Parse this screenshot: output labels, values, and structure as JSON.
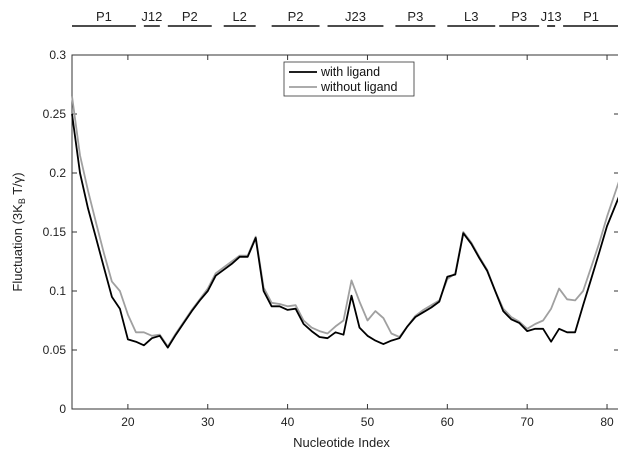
{
  "chart_data": {
    "type": "line",
    "xlabel": "Nucleotide Index",
    "ylabel": "Fluctuation (3K",
    "ylabel_sub": "B",
    "ylabel_tail": " T/γ)",
    "xlim": [
      13,
      81.5
    ],
    "ylim": [
      0,
      0.3
    ],
    "xticks": [
      20,
      30,
      40,
      50,
      60,
      70,
      80
    ],
    "yticks": [
      0,
      0.05,
      0.1,
      0.15,
      0.2,
      0.25,
      0.3
    ],
    "ytick_labels": [
      "0",
      "0.05",
      "0.1",
      "0.15",
      "0.2",
      "0.25",
      "0.3"
    ],
    "legend_position": "top-center",
    "grid": false,
    "regions": [
      {
        "label": "P1",
        "x0": 13,
        "x1": 21
      },
      {
        "label": "J12",
        "x0": 22,
        "x1": 24
      },
      {
        "label": "P2",
        "x0": 25,
        "x1": 30.5
      },
      {
        "label": "L2",
        "x0": 32,
        "x1": 36
      },
      {
        "label": "P2",
        "x0": 38,
        "x1": 44
      },
      {
        "label": "J23",
        "x0": 45,
        "x1": 52
      },
      {
        "label": "P3",
        "x0": 53.5,
        "x1": 58.5
      },
      {
        "label": "L3",
        "x0": 60,
        "x1": 66
      },
      {
        "label": "P3",
        "x0": 66.5,
        "x1": 71.5
      },
      {
        "label": "J13",
        "x0": 72.5,
        "x1": 73.5
      },
      {
        "label": "P1",
        "x0": 74.5,
        "x1": 81.5
      }
    ],
    "series": [
      {
        "name": "with ligand",
        "color": "#000000",
        "x": [
          13,
          14,
          15,
          16,
          17,
          18,
          19,
          20,
          21,
          22,
          23,
          24,
          25,
          26,
          27,
          28,
          29,
          30,
          31,
          32,
          33,
          34,
          35,
          36,
          37,
          38,
          39,
          40,
          41,
          42,
          43,
          44,
          45,
          46,
          47,
          48,
          49,
          50,
          51,
          52,
          53,
          54,
          55,
          56,
          57,
          58,
          59,
          60,
          61,
          62,
          63,
          64,
          65,
          66,
          67,
          68,
          69,
          70,
          71,
          72,
          73,
          74,
          75,
          76,
          77,
          78,
          79,
          80,
          81.5
        ],
        "values": [
          0.25,
          0.2,
          0.17,
          0.145,
          0.12,
          0.095,
          0.085,
          0.059,
          0.057,
          0.054,
          0.06,
          0.062,
          0.052,
          0.063,
          0.073,
          0.083,
          0.092,
          0.1,
          0.113,
          0.118,
          0.123,
          0.129,
          0.129,
          0.145,
          0.1,
          0.087,
          0.087,
          0.084,
          0.085,
          0.072,
          0.066,
          0.061,
          0.06,
          0.065,
          0.063,
          0.096,
          0.069,
          0.062,
          0.058,
          0.055,
          0.058,
          0.06,
          0.07,
          0.078,
          0.082,
          0.086,
          0.091,
          0.112,
          0.114,
          0.149,
          0.14,
          0.128,
          0.117,
          0.1,
          0.083,
          0.076,
          0.073,
          0.066,
          0.068,
          0.068,
          0.057,
          0.068,
          0.065,
          0.065,
          0.088,
          0.11,
          0.132,
          0.155,
          0.18
        ]
      },
      {
        "name": "without ligand",
        "color": "#a0a0a0",
        "x": [
          13,
          14,
          15,
          16,
          17,
          18,
          19,
          20,
          21,
          22,
          23,
          24,
          25,
          26,
          27,
          28,
          29,
          30,
          31,
          32,
          33,
          34,
          35,
          36,
          37,
          38,
          39,
          40,
          41,
          42,
          43,
          44,
          45,
          46,
          47,
          48,
          49,
          50,
          51,
          52,
          53,
          54,
          55,
          56,
          57,
          58,
          59,
          60,
          61,
          62,
          63,
          64,
          65,
          66,
          67,
          68,
          69,
          70,
          71,
          72,
          73,
          74,
          75,
          76,
          77,
          78,
          79,
          80,
          81.5
        ],
        "values": [
          0.265,
          0.215,
          0.185,
          0.158,
          0.132,
          0.108,
          0.1,
          0.08,
          0.065,
          0.065,
          0.062,
          0.063,
          0.053,
          0.064,
          0.074,
          0.084,
          0.093,
          0.102,
          0.115,
          0.12,
          0.125,
          0.13,
          0.13,
          0.146,
          0.103,
          0.09,
          0.089,
          0.087,
          0.088,
          0.075,
          0.069,
          0.066,
          0.064,
          0.07,
          0.075,
          0.109,
          0.091,
          0.075,
          0.083,
          0.077,
          0.064,
          0.061,
          0.07,
          0.079,
          0.084,
          0.088,
          0.092,
          0.11,
          0.115,
          0.15,
          0.141,
          0.129,
          0.118,
          0.1,
          0.085,
          0.078,
          0.074,
          0.068,
          0.072,
          0.075,
          0.085,
          0.102,
          0.093,
          0.092,
          0.1,
          0.12,
          0.14,
          0.163,
          0.193
        ]
      }
    ]
  }
}
